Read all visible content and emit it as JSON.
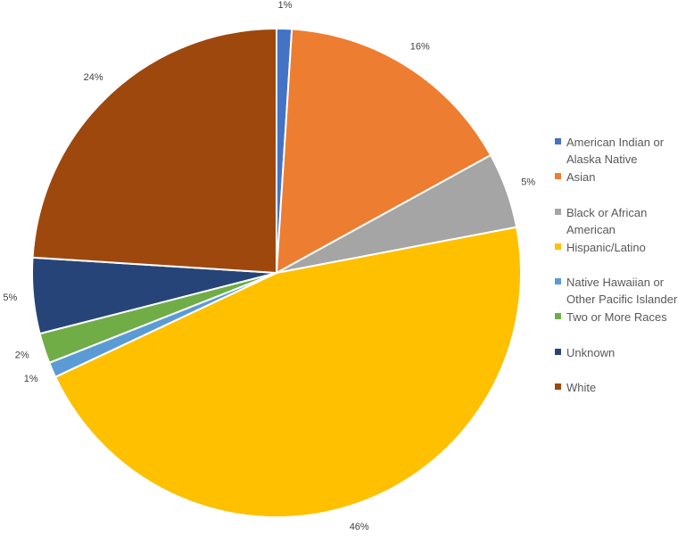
{
  "chart_data": {
    "type": "pie",
    "categories": [
      "American Indian or Alaska Native",
      "Asian",
      "Black or African American",
      "Hispanic/Latino",
      "Native Hawaiian or Other Pacific Islander",
      "Two or More Races",
      "Unknown",
      "White"
    ],
    "values": [
      1,
      16,
      5,
      46,
      1,
      2,
      5,
      24
    ],
    "value_labels": [
      "1%",
      "16%",
      "5%",
      "46%",
      "1%",
      "2%",
      "5%",
      "24%"
    ],
    "colors": [
      "#4472c4",
      "#ed7d31",
      "#a5a5a5",
      "#ffc000",
      "#5b9bd5",
      "#70ad47",
      "#264478",
      "#9e480e"
    ]
  }
}
